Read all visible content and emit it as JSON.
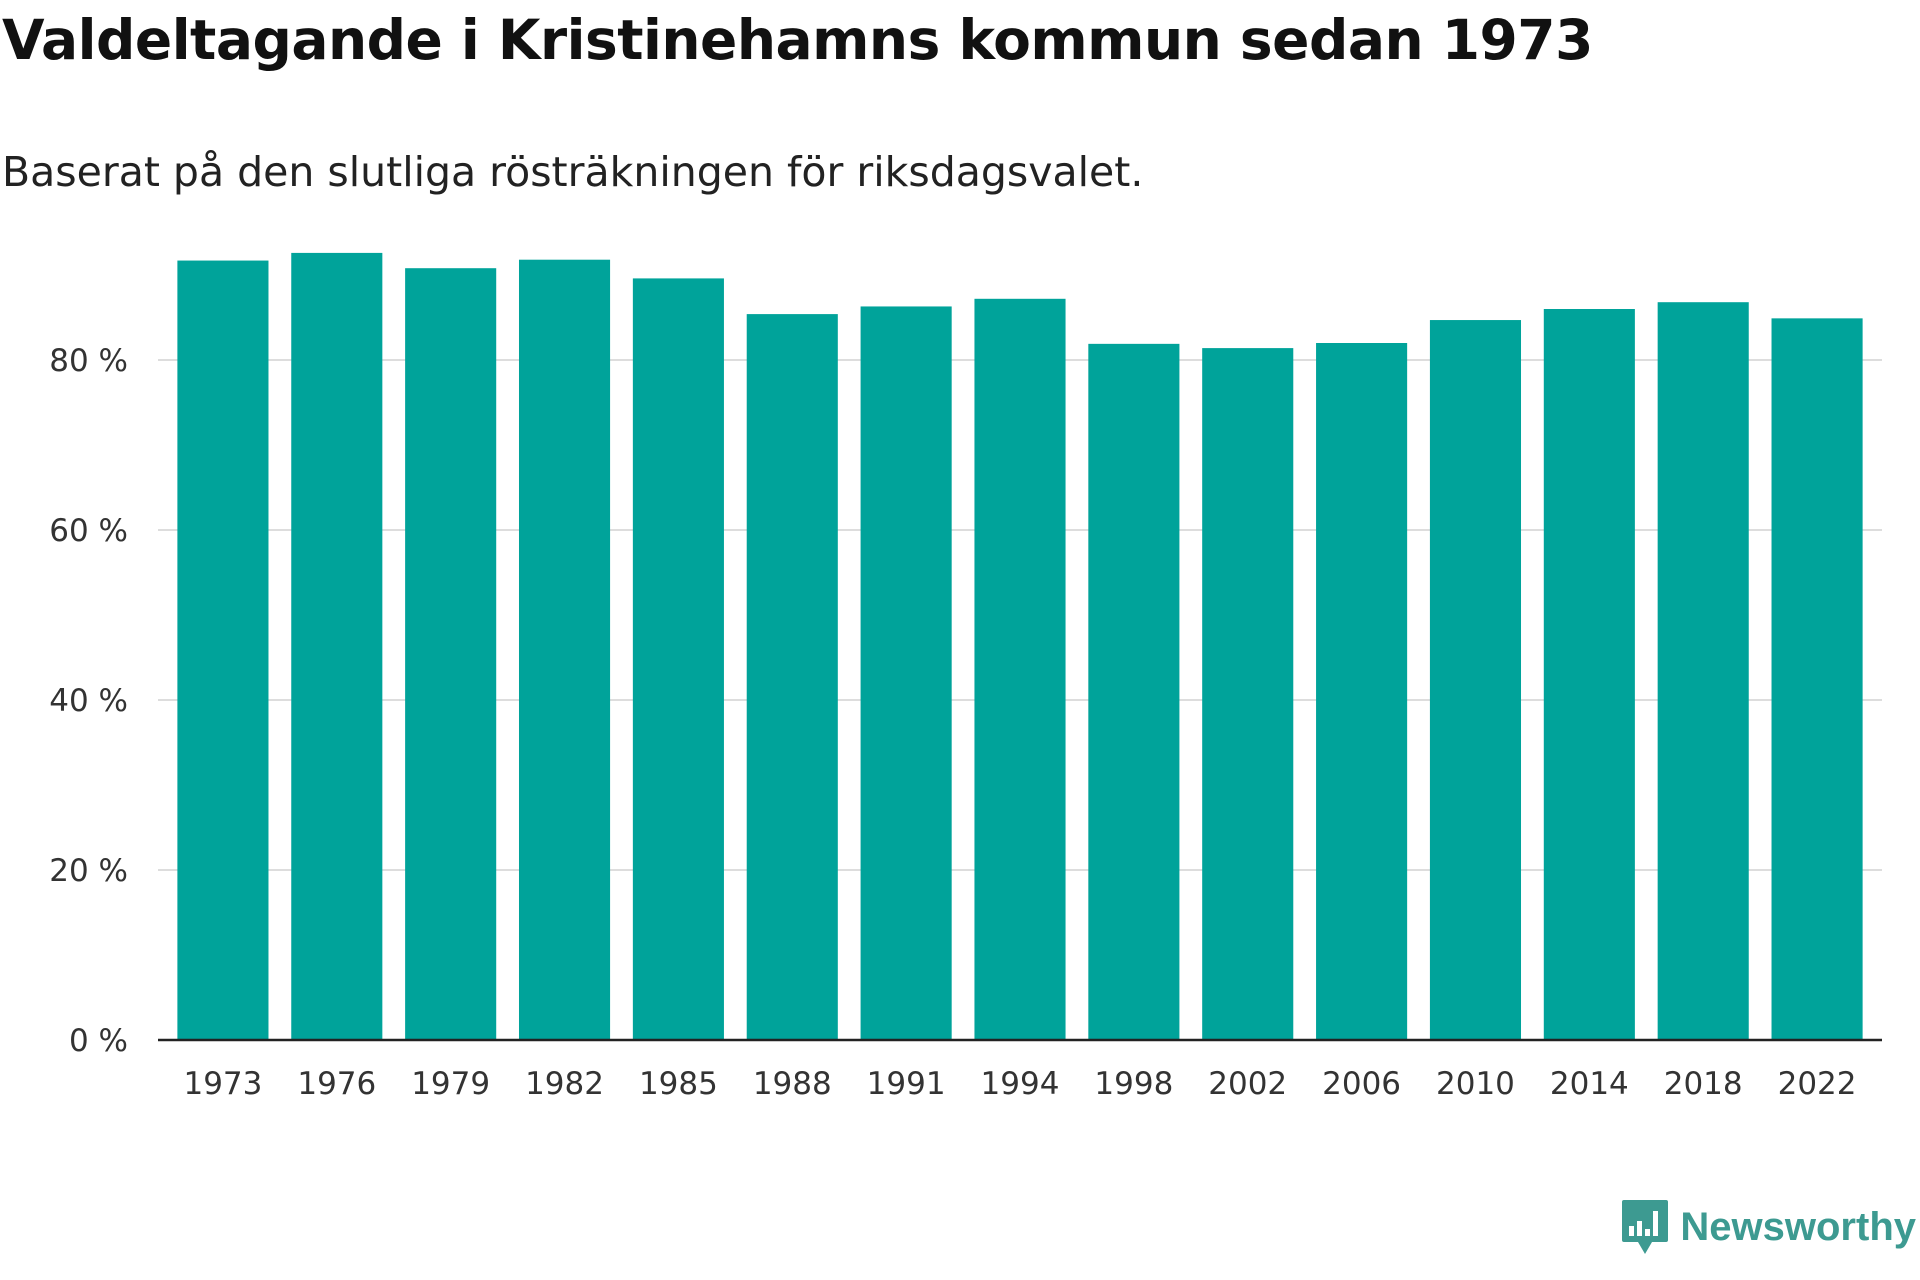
{
  "title": "Valdeltagande i Kristinehamns kommun sedan 1973",
  "subtitle": "Baserat på den slutliga rösträkningen för riksdagsvalet.",
  "brand": {
    "name": "Newsworthy",
    "icon": "newsworthy-logo-icon",
    "color": "#3d9a91"
  },
  "chart_data": {
    "type": "bar",
    "title": "Valdeltagande i Kristinehamns kommun sedan 1973",
    "subtitle": "Baserat på den slutliga rösträkningen för riksdagsvalet.",
    "xlabel": "",
    "ylabel": "",
    "categories": [
      "1973",
      "1976",
      "1979",
      "1982",
      "1985",
      "1988",
      "1991",
      "1994",
      "1998",
      "2002",
      "2006",
      "2010",
      "2014",
      "2018",
      "2022"
    ],
    "values": [
      91.7,
      92.6,
      90.8,
      91.8,
      89.6,
      85.4,
      86.3,
      87.2,
      81.9,
      81.4,
      82.0,
      84.7,
      86.0,
      86.8,
      84.9
    ],
    "ylim": [
      0,
      100
    ],
    "yticks": [
      0,
      20,
      40,
      60,
      80
    ],
    "ytick_labels": [
      "0 %",
      "20 %",
      "40 %",
      "60 %",
      "80 %"
    ],
    "grid": true,
    "bar_color": "#00a39a"
  }
}
